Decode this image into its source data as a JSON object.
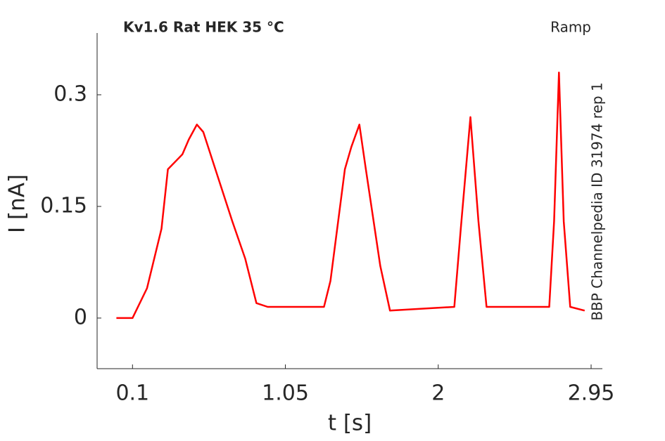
{
  "chart_data": {
    "type": "line",
    "title": "Kv1.6  Rat  HEK  35 °C",
    "subtitle": "Ramp",
    "annotation": "BBP Channelpedia ID 31974 rep 1",
    "x_label": "t [s]",
    "y_label": "I [nA]",
    "x": [
      0.0,
      0.1,
      0.19,
      0.28,
      0.32,
      0.41,
      0.45,
      0.5,
      0.54,
      0.63,
      0.72,
      0.8,
      0.87,
      0.94,
      1.29,
      1.33,
      1.42,
      1.46,
      1.51,
      1.55,
      1.64,
      1.7,
      2.1,
      2.14,
      2.2,
      2.25,
      2.3,
      2.69,
      2.72,
      2.75,
      2.78,
      2.82,
      2.91
    ],
    "values": [
      0.0,
      0.0,
      0.04,
      0.12,
      0.2,
      0.22,
      0.24,
      0.26,
      0.25,
      0.19,
      0.13,
      0.08,
      0.02,
      0.015,
      0.015,
      0.05,
      0.2,
      0.23,
      0.26,
      0.2,
      0.07,
      0.01,
      0.015,
      0.12,
      0.27,
      0.13,
      0.015,
      0.015,
      0.13,
      0.33,
      0.13,
      0.015,
      0.01
    ],
    "color": "#ff0000",
    "xlim": [
      -0.12,
      3.02
    ],
    "ylim": [
      -0.068,
      0.383
    ],
    "xticks": [
      0.1,
      1.05,
      2,
      2.95
    ],
    "yticks": [
      0,
      0.15,
      0.3
    ]
  }
}
